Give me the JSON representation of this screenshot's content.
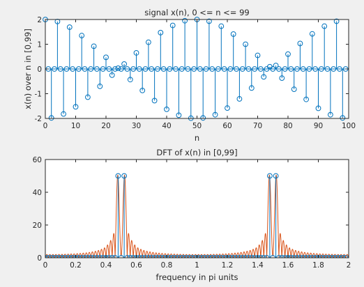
{
  "chart_data": [
    {
      "type": "stem",
      "title": "signal x(n), 0 <= n <= 99",
      "xlabel": "n",
      "ylabel": "x(n) over n in [0,99]",
      "xlim": [
        0,
        100
      ],
      "ylim": [
        -2,
        2
      ],
      "x_ticks": [
        "0",
        "10",
        "20",
        "30",
        "40",
        "50",
        "60",
        "70",
        "80",
        "90",
        "100"
      ],
      "y_ticks": [
        "-2",
        "-1",
        "0",
        "1",
        "2"
      ],
      "grid": false,
      "series": [
        {
          "color": "#0072bd",
          "signal": "x(n) = cos(0.48*pi*n) + cos(0.52*pi*n)",
          "n_start": 0,
          "n_end": 99,
          "values": [
            2.0,
            0.0,
            -1.98,
            0.0,
            1.92,
            0.0,
            -1.82,
            0.0,
            1.69,
            0.0,
            -1.53,
            0.0,
            1.35,
            0.0,
            -1.14,
            0.0,
            0.92,
            0.0,
            -0.7,
            0.0,
            0.47,
            0.0,
            -0.25,
            0.0,
            0.03,
            0.0,
            0.2,
            0.0,
            -0.43,
            0.0,
            0.65,
            0.0,
            -0.87,
            0.0,
            1.08,
            0.0,
            -1.28,
            0.0,
            1.47,
            0.0,
            -1.63,
            0.0,
            1.76,
            0.0,
            -1.87,
            0.0,
            1.95,
            0.0,
            -1.99,
            0.0,
            2.0,
            0.0,
            -1.98,
            0.0,
            1.93,
            0.0,
            -1.85,
            0.0,
            1.73,
            0.0,
            -1.58,
            0.0,
            1.41,
            0.0,
            -1.21,
            0.0,
            1.0,
            0.0,
            -0.77,
            0.0,
            0.55,
            0.0,
            -0.32,
            0.0,
            0.09,
            0.0,
            0.14,
            0.0,
            -0.37,
            0.0,
            0.6,
            0.0,
            -0.82,
            0.0,
            1.03,
            0.0,
            -1.23,
            0.0,
            1.42,
            0.0,
            -1.59,
            0.0,
            1.73,
            0.0,
            -1.85,
            0.0,
            1.93,
            0.0,
            -1.98,
            0.0
          ]
        }
      ]
    },
    {
      "type": "line",
      "title": "DFT of x(n) in [0,99]",
      "xlabel": "frequency in pi units",
      "ylabel": "",
      "xlim": [
        0,
        2
      ],
      "ylim": [
        0,
        60
      ],
      "x_ticks": [
        "0",
        "0.2",
        "0.4",
        "0.6",
        "0.8",
        "1",
        "1.2",
        "1.4",
        "1.6",
        "1.8",
        "2"
      ],
      "y_ticks": [
        "0",
        "20",
        "40",
        "60"
      ],
      "grid": false,
      "series": [
        {
          "style": "line",
          "color": "#d95319",
          "description": "|DTFT| of x(n), dense frequency grid",
          "peaks_at": [
            0.48,
            0.52,
            1.48,
            1.52
          ],
          "peak_value": 50
        },
        {
          "style": "stem",
          "color": "#0072bd",
          "description": "100-point DFT magnitude at k/50 pi units",
          "nonzero_points": [
            {
              "x": 0.48,
              "y": 50
            },
            {
              "x": 0.52,
              "y": 50
            },
            {
              "x": 1.48,
              "y": 50
            },
            {
              "x": 1.52,
              "y": 50
            }
          ],
          "other_points_y": 0
        }
      ]
    }
  ]
}
